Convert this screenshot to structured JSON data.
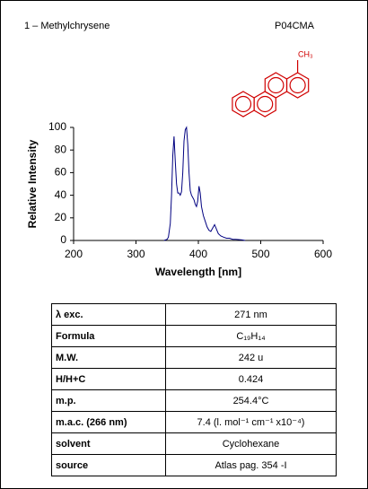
{
  "header": {
    "title": "1 – Methylchrysene",
    "code": "P04CMA"
  },
  "molecule_label": "CH₃",
  "chart_data": {
    "type": "line",
    "xlabel": "Wavelength [nm]",
    "ylabel": "Relative Intensity",
    "xlim": [
      200,
      600
    ],
    "xticks": [
      200,
      300,
      400,
      500,
      600
    ],
    "ylim": [
      0,
      100
    ],
    "yticks": [
      0,
      20,
      40,
      60,
      80,
      100
    ],
    "x": [
      345,
      350,
      352,
      355,
      357,
      359,
      361,
      363,
      365,
      367,
      369,
      371,
      373,
      375,
      377,
      379,
      381,
      383,
      385,
      387,
      389,
      391,
      393,
      395,
      397,
      399,
      401,
      403,
      405,
      408,
      411,
      414,
      417,
      420,
      423,
      426,
      429,
      432,
      436,
      440,
      445,
      450,
      455,
      460,
      470,
      475
    ],
    "series": [
      {
        "color": "#000080",
        "values": [
          0,
          1,
          3,
          15,
          40,
          75,
          92,
          70,
          50,
          42,
          42,
          40,
          43,
          60,
          88,
          98,
          100,
          85,
          60,
          44,
          40,
          38,
          36,
          32,
          30,
          35,
          48,
          42,
          30,
          22,
          17,
          12,
          9,
          8,
          11,
          14,
          10,
          6,
          4,
          3,
          2,
          2,
          1,
          1,
          0.5,
          0
        ]
      }
    ]
  },
  "table": {
    "rows": [
      [
        "λ exc.",
        "271 nm"
      ],
      [
        "Formula",
        "C₁₉H₁₄"
      ],
      [
        "M.W.",
        "242 u"
      ],
      [
        "H/H+C",
        "0.424"
      ],
      [
        "m.p.",
        "254.4°C"
      ],
      [
        "m.a.c. (266 nm)",
        "7.4 (l. mol⁻¹ cm⁻¹ x10⁻⁴)"
      ],
      [
        "solvent",
        "Cyclohexane"
      ],
      [
        "source",
        "Atlas pag. 354 -I"
      ]
    ]
  }
}
